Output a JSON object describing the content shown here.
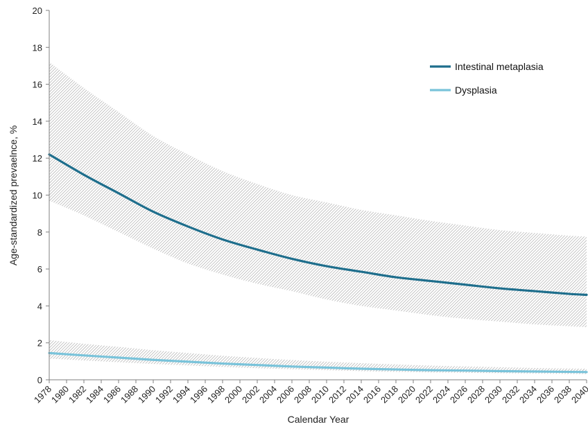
{
  "chart_data": {
    "type": "line",
    "title": "",
    "xlabel": "Calendar Year",
    "ylabel": "Age-standardized prevaelnce, %",
    "ylim": [
      0,
      20
    ],
    "xlim": [
      1978,
      2040
    ],
    "yticks": [
      0,
      2,
      4,
      6,
      8,
      10,
      12,
      14,
      16,
      18,
      20
    ],
    "xticks": [
      "1978",
      "1980",
      "1982",
      "1984",
      "1986",
      "1988",
      "1990",
      "1992",
      "1994",
      "1996",
      "1998",
      "2000",
      "2002",
      "2004",
      "2006",
      "2008",
      "2010",
      "2012",
      "2014",
      "2016",
      "2018",
      "2020",
      "2022",
      "2024",
      "2026",
      "2028",
      "2030",
      "2032",
      "2034",
      "2036",
      "2038",
      "2040"
    ],
    "grid": false,
    "legend_position": "top-right",
    "series": [
      {
        "name": "Intestinal metaplasia",
        "color": "#1e6e8c",
        "x": [
          1978,
          1982,
          1986,
          1990,
          1994,
          1998,
          2002,
          2006,
          2010,
          2014,
          2018,
          2022,
          2026,
          2030,
          2034,
          2038,
          2040
        ],
        "values": [
          12.2,
          11.1,
          10.1,
          9.1,
          8.3,
          7.6,
          7.05,
          6.55,
          6.15,
          5.85,
          5.55,
          5.35,
          5.15,
          4.95,
          4.8,
          4.65,
          4.6
        ],
        "lower": [
          9.7,
          8.9,
          8.0,
          7.1,
          6.3,
          5.7,
          5.2,
          4.8,
          4.35,
          4.0,
          3.75,
          3.5,
          3.3,
          3.15,
          3.0,
          2.9,
          2.85
        ],
        "upper": [
          17.2,
          15.8,
          14.5,
          13.2,
          12.2,
          11.3,
          10.6,
          10.0,
          9.6,
          9.2,
          8.9,
          8.6,
          8.35,
          8.1,
          7.95,
          7.8,
          7.75
        ]
      },
      {
        "name": "Dysplasia",
        "color": "#79c3da",
        "x": [
          1978,
          1982,
          1986,
          1990,
          1994,
          1998,
          2002,
          2006,
          2010,
          2014,
          2018,
          2022,
          2026,
          2030,
          2034,
          2038,
          2040
        ],
        "values": [
          1.45,
          1.32,
          1.2,
          1.08,
          0.98,
          0.88,
          0.8,
          0.72,
          0.66,
          0.6,
          0.56,
          0.52,
          0.5,
          0.47,
          0.45,
          0.43,
          0.42
        ],
        "lower": [
          1.15,
          1.05,
          0.95,
          0.86,
          0.78,
          0.7,
          0.63,
          0.57,
          0.52,
          0.47,
          0.43,
          0.4,
          0.38,
          0.36,
          0.34,
          0.32,
          0.31
        ],
        "upper": [
          2.15,
          1.95,
          1.78,
          1.6,
          1.45,
          1.3,
          1.18,
          1.07,
          0.98,
          0.9,
          0.83,
          0.77,
          0.72,
          0.68,
          0.64,
          0.61,
          0.6
        ]
      }
    ]
  }
}
